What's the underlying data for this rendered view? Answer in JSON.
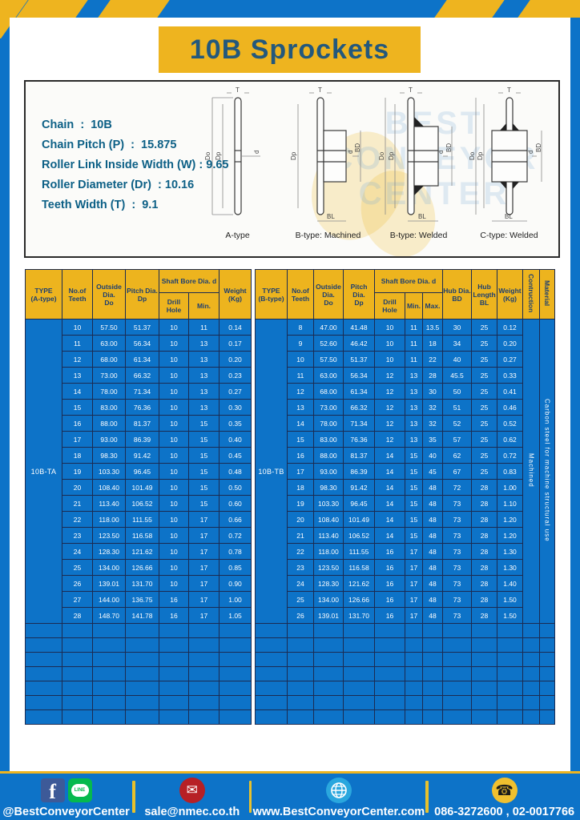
{
  "title": "10B Sprockets",
  "specs": {
    "lines": [
      "Chain  :  10B",
      "Chain Pitch (P)  :  15.875",
      "Roller Link Inside Width (W) : 9.65",
      "Roller Diameter (Dr)  : 10.16",
      "Teeth Width (T)  :  9.1"
    ]
  },
  "watermark": "BEST CONVEYOR CENTER",
  "diagrams": {
    "labels": {
      "T": "T",
      "Do": "Do",
      "Dp": "Dp",
      "d": "d",
      "BD": "BD",
      "BL": "BL"
    },
    "captions": [
      "A-type",
      "B-type: Machined",
      "B-type: Welded",
      "C-type: Welded"
    ]
  },
  "table_a": {
    "type_label": "10B-TA",
    "headers": {
      "type": "TYPE\n(A-type)",
      "teeth": "No.of\nTeeth",
      "outside": "Outside\nDia.\nDo",
      "pitch": "Pitch Dia.\nDp",
      "shaft": "Shaft Bore Dia. d",
      "drill": "Drill Hole",
      "min": "Min.",
      "weight": "Weight\n(Kg)"
    },
    "rows": [
      [
        "10",
        "57.50",
        "51.37",
        "10",
        "11",
        "0.14"
      ],
      [
        "11",
        "63.00",
        "56.34",
        "10",
        "13",
        "0.17"
      ],
      [
        "12",
        "68.00",
        "61.34",
        "10",
        "13",
        "0.20"
      ],
      [
        "13",
        "73.00",
        "66.32",
        "10",
        "13",
        "0.23"
      ],
      [
        "14",
        "78.00",
        "71.34",
        "10",
        "13",
        "0.27"
      ],
      [
        "15",
        "83.00",
        "76.36",
        "10",
        "13",
        "0.30"
      ],
      [
        "16",
        "88.00",
        "81.37",
        "10",
        "15",
        "0.35"
      ],
      [
        "17",
        "93.00",
        "86.39",
        "10",
        "15",
        "0.40"
      ],
      [
        "18",
        "98.30",
        "91.42",
        "10",
        "15",
        "0.45"
      ],
      [
        "19",
        "103.30",
        "96.45",
        "10",
        "15",
        "0.48"
      ],
      [
        "20",
        "108.40",
        "101.49",
        "10",
        "15",
        "0.50"
      ],
      [
        "21",
        "113.40",
        "106.52",
        "10",
        "15",
        "0.60"
      ],
      [
        "22",
        "118.00",
        "111.55",
        "10",
        "17",
        "0.66"
      ],
      [
        "23",
        "123.50",
        "116.58",
        "10",
        "17",
        "0.72"
      ],
      [
        "24",
        "128.30",
        "121.62",
        "10",
        "17",
        "0.78"
      ],
      [
        "25",
        "134.00",
        "126.66",
        "10",
        "17",
        "0.85"
      ],
      [
        "26",
        "139.01",
        "131.70",
        "10",
        "17",
        "0.90"
      ],
      [
        "27",
        "144.00",
        "136.75",
        "16",
        "17",
        "1.00"
      ],
      [
        "28",
        "148.70",
        "141.78",
        "16",
        "17",
        "1.05"
      ]
    ],
    "empty_rows": 7
  },
  "table_b": {
    "type_label": "10B-TB",
    "headers": {
      "type": "TYPE\n(B-type)",
      "teeth": "No.of\nTeeth",
      "outside": "Outside\nDia.\nDo",
      "pitch": "Pitch Dia.\nDp",
      "shaft": "Shaft Bore Dia. d",
      "drill": "Drill Hole",
      "min": "Min.",
      "max": "Max.",
      "hub_dia": "Hub Dia.\nBD",
      "hub_len": "Hub\nLength\nBL",
      "weight": "Weight\n(Kg)",
      "construction": "Contruction",
      "material": "Material"
    },
    "construction_value": "Machined",
    "material_value": "Carbon steel  for machine structural use",
    "rows": [
      [
        "8",
        "47.00",
        "41.48",
        "10",
        "11",
        "13.5",
        "30",
        "25",
        "0.12"
      ],
      [
        "9",
        "52.60",
        "46.42",
        "10",
        "11",
        "18",
        "34",
        "25",
        "0.20"
      ],
      [
        "10",
        "57.50",
        "51.37",
        "10",
        "11",
        "22",
        "40",
        "25",
        "0.27"
      ],
      [
        "11",
        "63.00",
        "56.34",
        "12",
        "13",
        "28",
        "45.5",
        "25",
        "0.33"
      ],
      [
        "12",
        "68.00",
        "61.34",
        "12",
        "13",
        "30",
        "50",
        "25",
        "0.41"
      ],
      [
        "13",
        "73.00",
        "66.32",
        "12",
        "13",
        "32",
        "51",
        "25",
        "0.46"
      ],
      [
        "14",
        "78.00",
        "71.34",
        "12",
        "13",
        "32",
        "52",
        "25",
        "0.52"
      ],
      [
        "15",
        "83.00",
        "76.36",
        "12",
        "13",
        "35",
        "57",
        "25",
        "0.62"
      ],
      [
        "16",
        "88.00",
        "81.37",
        "14",
        "15",
        "40",
        "62",
        "25",
        "0.72"
      ],
      [
        "17",
        "93.00",
        "86.39",
        "14",
        "15",
        "45",
        "67",
        "25",
        "0.83"
      ],
      [
        "18",
        "98.30",
        "91.42",
        "14",
        "15",
        "48",
        "72",
        "28",
        "1.00"
      ],
      [
        "19",
        "103.30",
        "96.45",
        "14",
        "15",
        "48",
        "73",
        "28",
        "1.10"
      ],
      [
        "20",
        "108.40",
        "101.49",
        "14",
        "15",
        "48",
        "73",
        "28",
        "1.20"
      ],
      [
        "21",
        "113.40",
        "106.52",
        "14",
        "15",
        "48",
        "73",
        "28",
        "1.20"
      ],
      [
        "22",
        "118.00",
        "111.55",
        "16",
        "17",
        "48",
        "73",
        "28",
        "1.30"
      ],
      [
        "23",
        "123.50",
        "116.58",
        "16",
        "17",
        "48",
        "73",
        "28",
        "1.30"
      ],
      [
        "24",
        "128.30",
        "121.62",
        "16",
        "17",
        "48",
        "73",
        "28",
        "1.40"
      ],
      [
        "25",
        "134.00",
        "126.66",
        "16",
        "17",
        "48",
        "73",
        "28",
        "1.50"
      ],
      [
        "26",
        "139.01",
        "131.70",
        "16",
        "17",
        "48",
        "73",
        "28",
        "1.50"
      ]
    ],
    "empty_rows": 7
  },
  "footer": {
    "items": [
      {
        "name": "social",
        "label": "@BestConveyorCenter"
      },
      {
        "name": "email",
        "label": "sale@nmec.co.th"
      },
      {
        "name": "website",
        "label": "www.BestConveyorCenter.com"
      },
      {
        "name": "phone",
        "label": "086-3272600 , 02-0017766"
      }
    ],
    "line_text": "LINE"
  },
  "colors": {
    "blue": "#0d73c8",
    "yellow": "#eeb41f",
    "grid_navy": "#1b2b52",
    "title_text": "#23587c",
    "spec_text": "#0d6086",
    "header_text": "#1d3f71"
  }
}
